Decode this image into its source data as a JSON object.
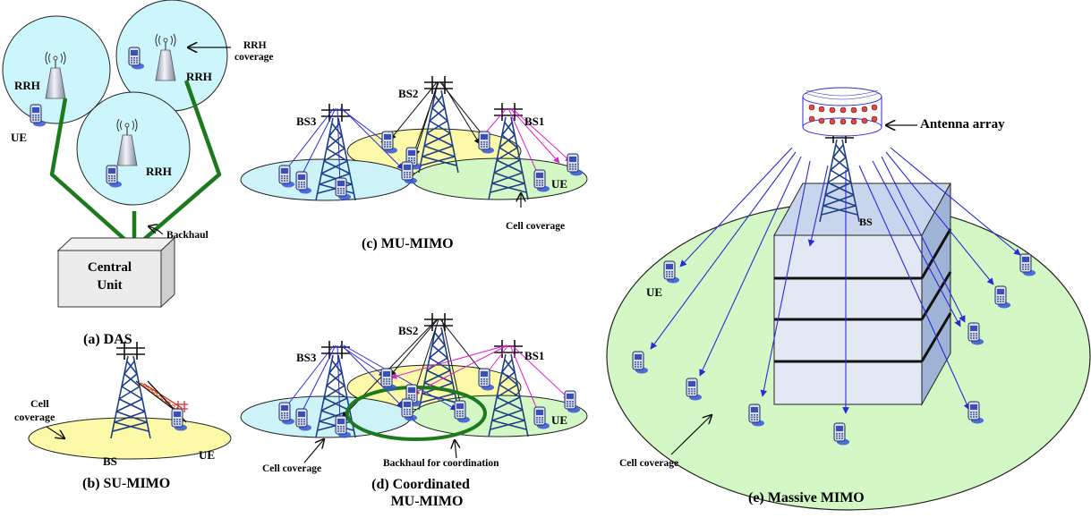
{
  "das": {
    "caption": "(a) DAS",
    "rrh_label": "RRH",
    "rrh_coverage_label": [
      "RRH",
      "coverage"
    ],
    "ue_label": "UE",
    "backhaul_label": "Backhaul",
    "central_unit_label": [
      "Central",
      "Unit"
    ]
  },
  "su_mimo": {
    "caption": "(b) SU-MIMO",
    "cell_coverage_label": [
      "Cell",
      "coverage"
    ],
    "bs_label": "BS",
    "ue_label": "UE"
  },
  "mu_mimo": {
    "caption": "(c) MU-MIMO",
    "bs1_label": "BS1",
    "bs2_label": "BS2",
    "bs3_label": "BS3",
    "ue_label": "UE",
    "cell_coverage_label": "Cell coverage"
  },
  "coord_mu_mimo": {
    "caption": [
      "(d) Coordinated",
      "MU-MIMO"
    ],
    "bs1_label": "BS1",
    "bs2_label": "BS2",
    "bs3_label": "BS3",
    "ue_label": "UE",
    "cell_coverage_label": "Cell coverage",
    "backhaul_label": "Backhaul for coordination"
  },
  "massive_mimo": {
    "caption": "(e) Massive MIMO",
    "antenna_array_label": "Antenna array",
    "bs_label": "BS",
    "ue_label": "UE",
    "cell_coverage_label": "Cell coverage"
  },
  "colors": {
    "rrh_cell": "#ccf6fb",
    "yellow_cell": "#fcf9a8",
    "green_cell": "#d3f8c5",
    "blue_cell": "#cdf2f7",
    "backhaul": "#1c7a1c",
    "blue_link": "#2b2bd6",
    "magenta_link": "#e21fd3",
    "tower": "#1d3f86",
    "building_front": "#e2e9f5",
    "building_side": "#9fb3d6"
  }
}
